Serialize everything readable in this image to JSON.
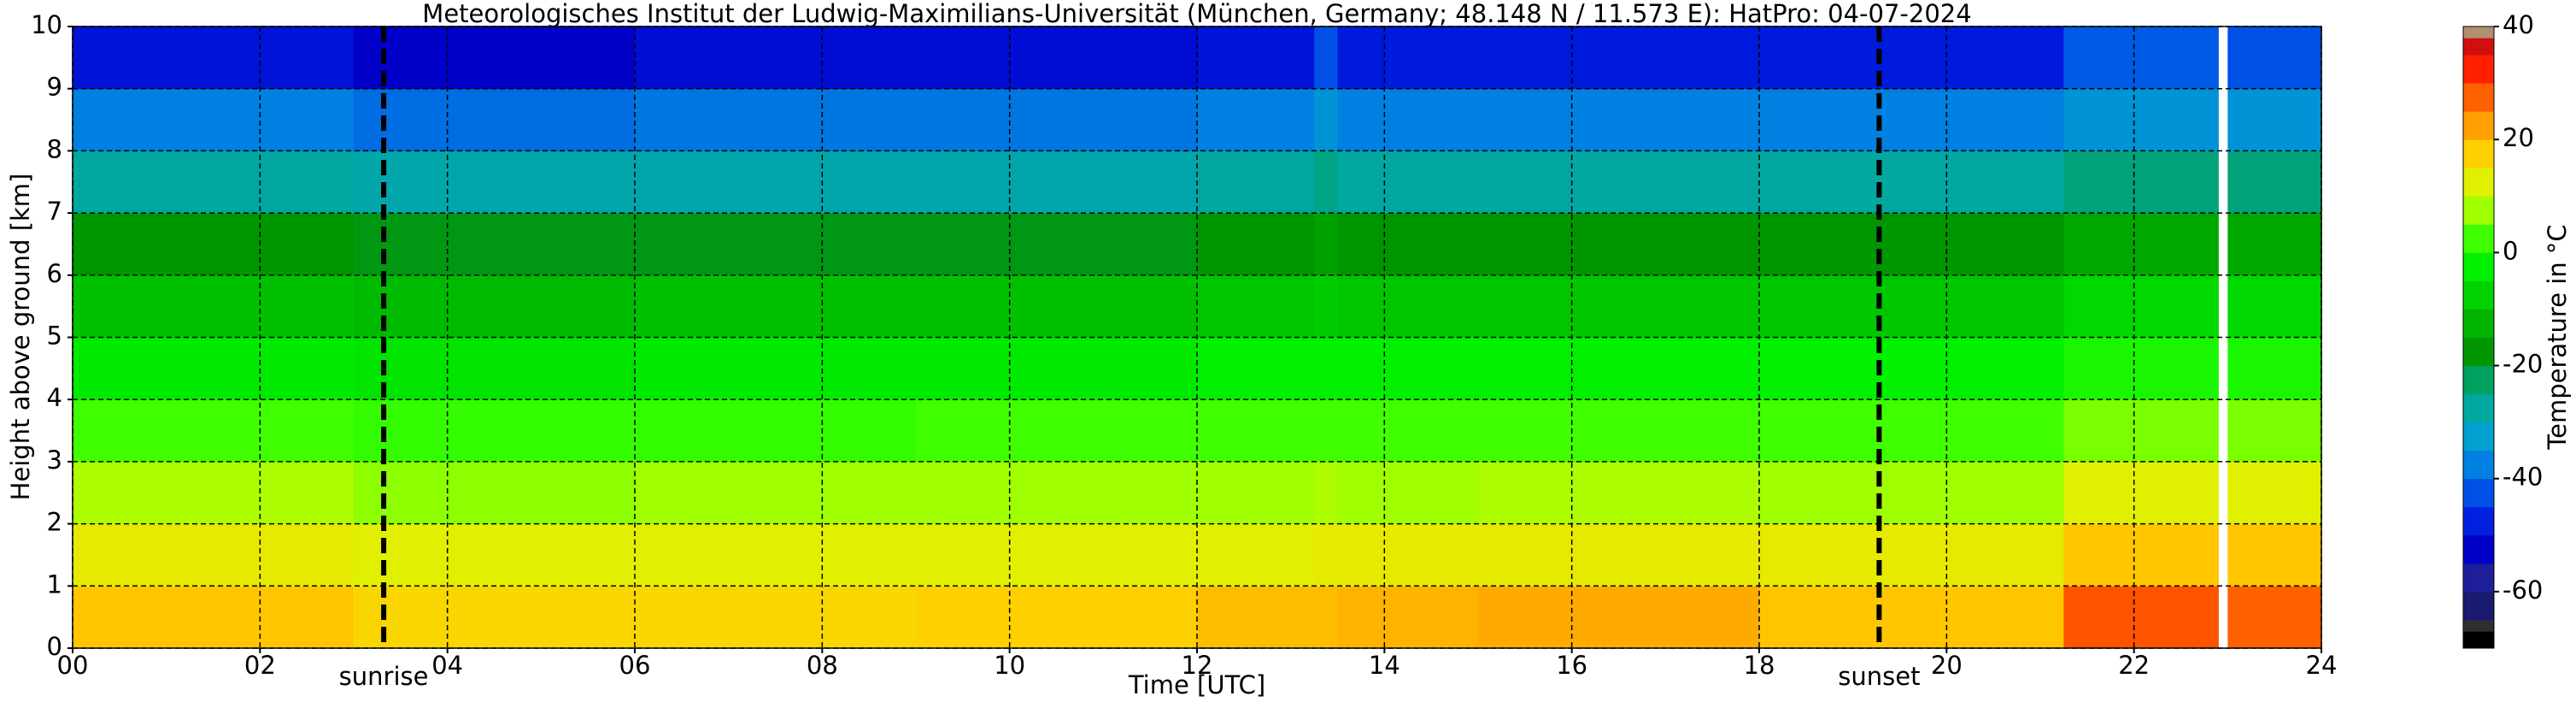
{
  "chart_data": {
    "type": "heatmap",
    "title": "Meteorologisches Institut der Ludwig-Maximilians-Universität (München, Germany; 48.148 N / 11.573 E):    HatPro: 04-07-2024",
    "x_label": "Time [UTC]",
    "y_label": "Height above ground [km]",
    "colorbar_label": "Temperature in °C",
    "x_edges": [
      0,
      3,
      6,
      9,
      12,
      13.25,
      13.5,
      15,
      18,
      21.25,
      22.9,
      23,
      24
    ],
    "y_edges": [
      0,
      1,
      2,
      3,
      4,
      5,
      6,
      7,
      8,
      9,
      10
    ],
    "z": [
      [
        16,
        14,
        14,
        15,
        17,
        17,
        18,
        19,
        16,
        26,
        null,
        25
      ],
      [
        11,
        10,
        10,
        10,
        10,
        11,
        11,
        11,
        11,
        16,
        null,
        16
      ],
      [
        6,
        4,
        5,
        5,
        5,
        6,
        5,
        6,
        5,
        10,
        null,
        10
      ],
      [
        0,
        -1,
        -1,
        0,
        0,
        0,
        0,
        0,
        0,
        3,
        null,
        3
      ],
      [
        -6,
        -7,
        -6,
        -6,
        -5,
        -5,
        -5,
        -5,
        -5,
        -3,
        null,
        -3
      ],
      [
        -13,
        -14,
        -13,
        -13,
        -12,
        -11,
        -12,
        -12,
        -12,
        -9,
        null,
        -9
      ],
      [
        -20,
        -21,
        -21,
        -21,
        -20,
        -18,
        -20,
        -20,
        -20,
        -17,
        null,
        -17
      ],
      [
        -30,
        -31,
        -31,
        -31,
        -30,
        -28,
        -30,
        -30,
        -30,
        -27,
        null,
        -27
      ],
      [
        -40,
        -42,
        -41,
        -41,
        -40,
        -37,
        -40,
        -40,
        -40,
        -37,
        null,
        -37
      ],
      [
        -52,
        -55,
        -53,
        -53,
        -52,
        -45,
        -51,
        -51,
        -51,
        -44,
        null,
        -45
      ]
    ],
    "xlim": [
      0,
      24
    ],
    "ylim": [
      0,
      10
    ],
    "xticks": [
      {
        "value": 0,
        "label": "00"
      },
      {
        "value": 2,
        "label": "02"
      },
      {
        "value": 4,
        "label": "04"
      },
      {
        "value": 6,
        "label": "06"
      },
      {
        "value": 8,
        "label": "08"
      },
      {
        "value": 10,
        "label": "10"
      },
      {
        "value": 12,
        "label": "12"
      },
      {
        "value": 14,
        "label": "14"
      },
      {
        "value": 16,
        "label": "16"
      },
      {
        "value": 18,
        "label": "18"
      },
      {
        "value": 20,
        "label": "20"
      },
      {
        "value": 22,
        "label": "22"
      },
      {
        "value": 24,
        "label": "24"
      }
    ],
    "yticks": [
      0,
      1,
      2,
      3,
      4,
      5,
      6,
      7,
      8,
      9,
      10
    ],
    "grid": true,
    "clim": [
      -70,
      40
    ],
    "cticks": [
      40,
      20,
      0,
      -20,
      -40,
      -60
    ],
    "colorscale": [
      [
        -70,
        "#000000"
      ],
      [
        -67,
        "#303030"
      ],
      [
        -65,
        "#1a1a6e"
      ],
      [
        -60,
        "#1e1e9a"
      ],
      [
        -55,
        "#0000c8"
      ],
      [
        -50,
        "#0020e0"
      ],
      [
        -45,
        "#0050e6"
      ],
      [
        -40,
        "#0080e0"
      ],
      [
        -35,
        "#00a0d0"
      ],
      [
        -30,
        "#00a8a0"
      ],
      [
        -25,
        "#00a060"
      ],
      [
        -20,
        "#009600"
      ],
      [
        -15,
        "#00b400"
      ],
      [
        -10,
        "#00d200"
      ],
      [
        -5,
        "#00f000"
      ],
      [
        0,
        "#40ff00"
      ],
      [
        5,
        "#a0ff00"
      ],
      [
        10,
        "#e0f000"
      ],
      [
        15,
        "#ffd000"
      ],
      [
        20,
        "#ffa000"
      ],
      [
        25,
        "#ff6000"
      ],
      [
        30,
        "#ff2000"
      ],
      [
        35,
        "#d01010"
      ],
      [
        38,
        "#b09070"
      ],
      [
        40,
        "#d8d8d8"
      ]
    ],
    "annotations": [
      {
        "text": "sunrise",
        "x": 3.32
      },
      {
        "text": "sunset",
        "x": 19.28
      }
    ]
  }
}
